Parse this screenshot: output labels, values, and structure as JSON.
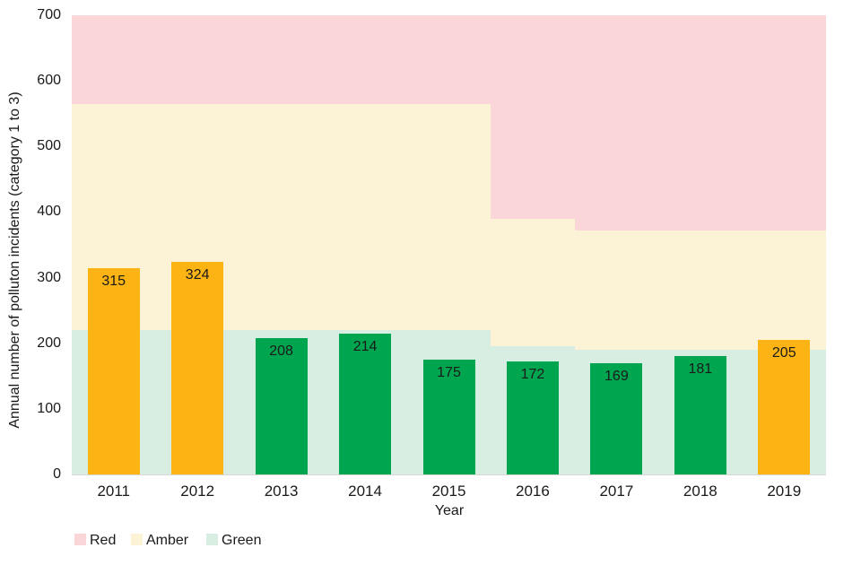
{
  "chart_data": {
    "type": "bar",
    "title": "",
    "xlabel": "Year",
    "ylabel": "Annual number of polluton incidents (category 1 to 3)",
    "ylim": [
      0,
      700
    ],
    "yticks": [
      0,
      100,
      200,
      300,
      400,
      500,
      600,
      700
    ],
    "categories": [
      "2011",
      "2012",
      "2013",
      "2014",
      "2015",
      "2016",
      "2017",
      "2018",
      "2019"
    ],
    "values": [
      315,
      324,
      208,
      214,
      175,
      172,
      169,
      181,
      205
    ],
    "bar_status": [
      "amber",
      "amber",
      "green",
      "green",
      "green",
      "green",
      "green",
      "green",
      "amber"
    ],
    "grid": false,
    "background_bands": {
      "note": "RAG threshold bands behind bars; thresholds step down over time",
      "segments": [
        {
          "from_year": "2011",
          "to_year": "2015",
          "red_above": 565,
          "green_below": 220
        },
        {
          "from_year": "2016",
          "to_year": "2016",
          "red_above": 390,
          "green_below": 195
        },
        {
          "from_year": "2017",
          "to_year": "2019",
          "red_above": 372,
          "green_below": 190
        }
      ]
    },
    "legend": [
      {
        "label": "Red",
        "key": "red"
      },
      {
        "label": "Amber",
        "key": "amber"
      },
      {
        "label": "Green",
        "key": "green"
      }
    ],
    "legend_position": "bottom-left",
    "colors": {
      "band_red": "#FBD6D8",
      "band_amber": "#FCF3D7",
      "band_green": "#D8EEE3",
      "bar_amber": "#FCB415",
      "bar_green": "#00A64F",
      "axis_line": "#D7D7D7",
      "text": "#1A1A1A"
    }
  }
}
